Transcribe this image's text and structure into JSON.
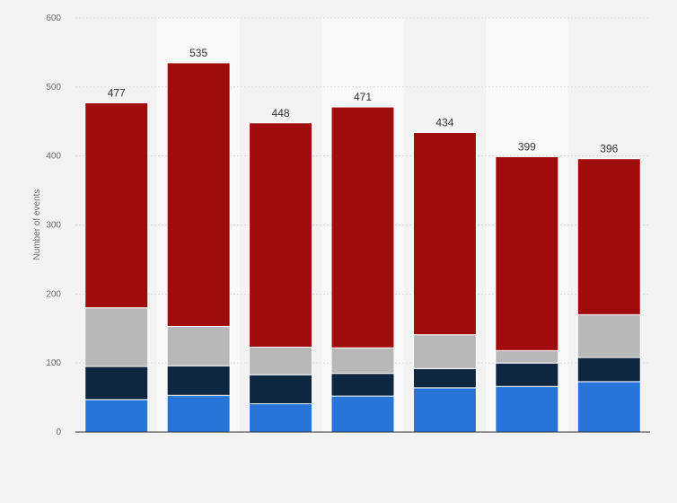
{
  "chart_data": {
    "type": "bar",
    "stacked": true,
    "categories": [
      "",
      "",
      "",
      "",
      "",
      "",
      ""
    ],
    "totals": [
      477,
      535,
      448,
      471,
      434,
      399,
      396
    ],
    "series": [
      {
        "values": [
          47,
          53,
          41,
          52,
          64,
          66,
          73
        ],
        "color": "#2775d8"
      },
      {
        "values": [
          48,
          43,
          42,
          33,
          28,
          34,
          35
        ],
        "color": "#0e2740"
      },
      {
        "values": [
          85,
          57,
          40,
          37,
          49,
          18,
          62
        ],
        "color": "#b8b8b8"
      },
      {
        "values": [
          297,
          382,
          325,
          349,
          293,
          281,
          226
        ],
        "color": "#a00b0b"
      }
    ],
    "ylabel": "Number of events",
    "ylim": [
      0,
      600
    ],
    "yticks": [
      0,
      100,
      200,
      300,
      400,
      500,
      600
    ],
    "grid": true,
    "alternate_column_shading": true
  }
}
